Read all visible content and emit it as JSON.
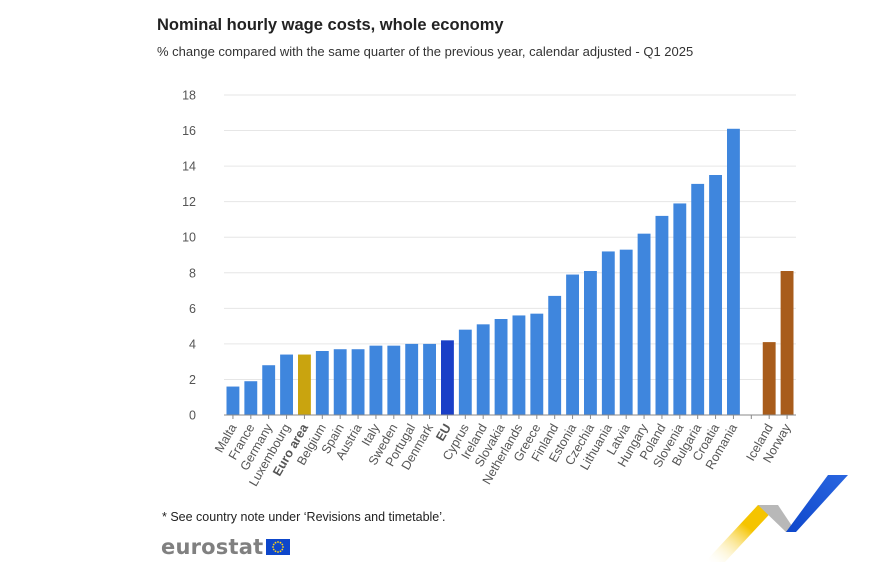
{
  "title": "Nominal hourly wage costs, whole economy",
  "subtitle": "% change compared with the same quarter of the previous year, calendar adjusted - Q1 2025",
  "footnote": "* See country note under ‘Revisions and timetable’.",
  "brand": {
    "name": "eurostat",
    "flag_icon": "eu-flag-icon"
  },
  "colors": {
    "country": "#3f86dd",
    "euro_area": "#c9a40f",
    "eu": "#1a3fc7",
    "efta": "#a85c1b",
    "grid": "#e6e6e6",
    "axis": "#888888"
  },
  "chart_data": {
    "type": "bar",
    "title": "Nominal hourly wage costs, whole economy",
    "subtitle": "% change compared with the same quarter of the previous year, calendar adjusted - Q1 2025",
    "xlabel": "",
    "ylabel": "",
    "ylim": [
      0,
      18
    ],
    "yticks": [
      0,
      2,
      4,
      6,
      8,
      10,
      12,
      14,
      16,
      18
    ],
    "grid": true,
    "legend": "none",
    "categories": [
      "Malta",
      "France",
      "Germany",
      "Luxembourg",
      "Euro area",
      "Belgium",
      "Spain",
      "Austria",
      "Italy",
      "Sweden",
      "Portugal",
      "Denmark",
      "EU",
      "Cyprus",
      "Ireland",
      "Slovakia",
      "Netherlands",
      "Greece",
      "Finland",
      "Estonia",
      "Czechia",
      "Lithuania",
      "Latvia",
      "Hungary",
      "Poland",
      "Slovenia",
      "Bulgaria",
      "Croatia",
      "Romania",
      "",
      "Iceland",
      "Norway"
    ],
    "values": [
      1.6,
      1.9,
      2.8,
      3.4,
      3.4,
      3.6,
      3.7,
      3.7,
      3.9,
      3.9,
      4.0,
      4.0,
      4.2,
      4.8,
      5.1,
      5.4,
      5.6,
      5.7,
      6.7,
      7.9,
      8.1,
      9.2,
      9.3,
      10.2,
      11.2,
      11.9,
      13.0,
      13.5,
      16.1,
      null,
      4.1,
      8.1
    ],
    "groups": [
      "country",
      "country",
      "country",
      "country",
      "euro_area",
      "country",
      "country",
      "country",
      "country",
      "country",
      "country",
      "country",
      "eu",
      "country",
      "country",
      "country",
      "country",
      "country",
      "country",
      "country",
      "country",
      "country",
      "country",
      "country",
      "country",
      "country",
      "country",
      "country",
      "country",
      "gap",
      "efta",
      "efta"
    ],
    "bold_labels": [
      "Euro area",
      "EU"
    ]
  }
}
